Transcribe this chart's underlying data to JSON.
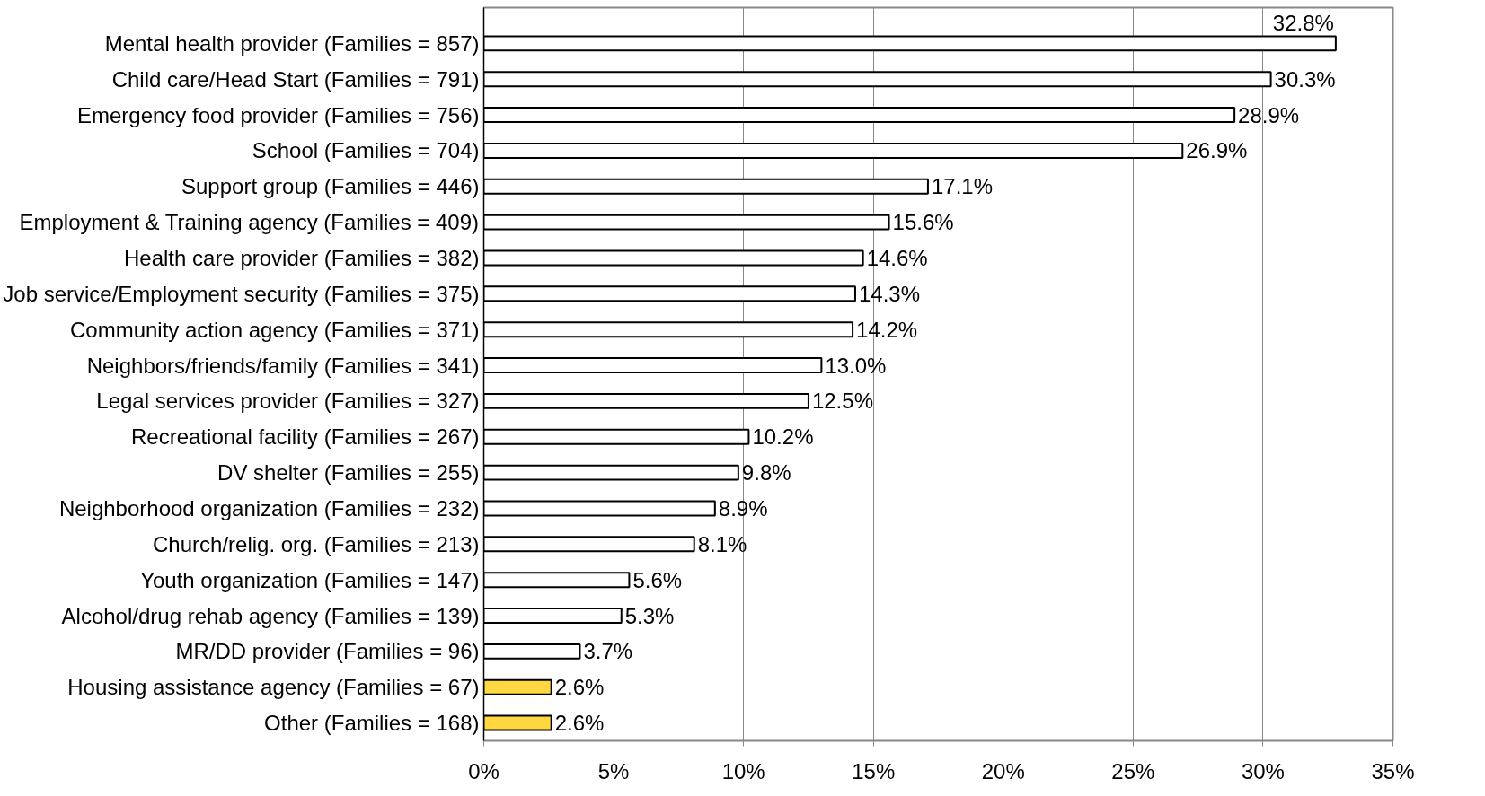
{
  "chart_data": {
    "type": "bar",
    "orientation": "horizontal",
    "categories": [
      "Mental health provider (Families = 857)",
      "Child care/Head Start (Families = 791)",
      "Emergency food provider (Families = 756)",
      "School (Families = 704)",
      "Support group (Families = 446)",
      "Employment & Training agency (Families = 409)",
      "Health care provider (Families = 382)",
      "Job service/Employment security (Families = 375)",
      "Community action agency (Families = 371)",
      "Neighbors/friends/family (Families = 341)",
      "Legal services provider (Families = 327)",
      "Recreational facility (Families = 267)",
      "DV shelter (Families = 255)",
      "Neighborhood organization (Families = 232)",
      "Church/relig. org. (Families = 213)",
      "Youth organization (Families = 147)",
      "Alcohol/drug rehab agency (Families = 139)",
      "MR/DD provider (Families = 96)",
      "Housing assistance agency (Families = 67)",
      "Other (Families = 168)"
    ],
    "values": [
      32.8,
      30.3,
      28.9,
      26.9,
      17.1,
      15.6,
      14.6,
      14.3,
      14.2,
      13.0,
      12.5,
      10.2,
      9.8,
      8.9,
      8.1,
      5.6,
      5.3,
      3.7,
      2.6,
      2.6
    ],
    "value_labels": [
      "32.8%",
      "30.3%",
      "28.9%",
      "26.9%",
      "17.1%",
      "15.6%",
      "14.6%",
      "14.3%",
      "14.2%",
      "13.0%",
      "12.5%",
      "10.2%",
      "9.8%",
      "8.9%",
      "8.1%",
      "5.6%",
      "5.3%",
      "3.7%",
      "2.6%",
      "2.6%"
    ],
    "colors": [
      "#ffffff",
      "#ffffff",
      "#ffffff",
      "#ffffff",
      "#ffffff",
      "#ffffff",
      "#ffffff",
      "#ffffff",
      "#ffffff",
      "#ffffff",
      "#ffffff",
      "#ffffff",
      "#ffffff",
      "#ffffff",
      "#ffffff",
      "#ffffff",
      "#ffffff",
      "#ffffff",
      "#ffd740",
      "#ffd740"
    ],
    "xlim": [
      0,
      35
    ],
    "xticks": [
      {
        "value": 0,
        "label": "0%"
      },
      {
        "value": 5,
        "label": "5%"
      },
      {
        "value": 10,
        "label": "10%"
      },
      {
        "value": 15,
        "label": "15%"
      },
      {
        "value": 20,
        "label": "20%"
      },
      {
        "value": 25,
        "label": "25%"
      },
      {
        "value": 30,
        "label": "30%"
      },
      {
        "value": 35,
        "label": "35%"
      }
    ],
    "grid": "x"
  }
}
